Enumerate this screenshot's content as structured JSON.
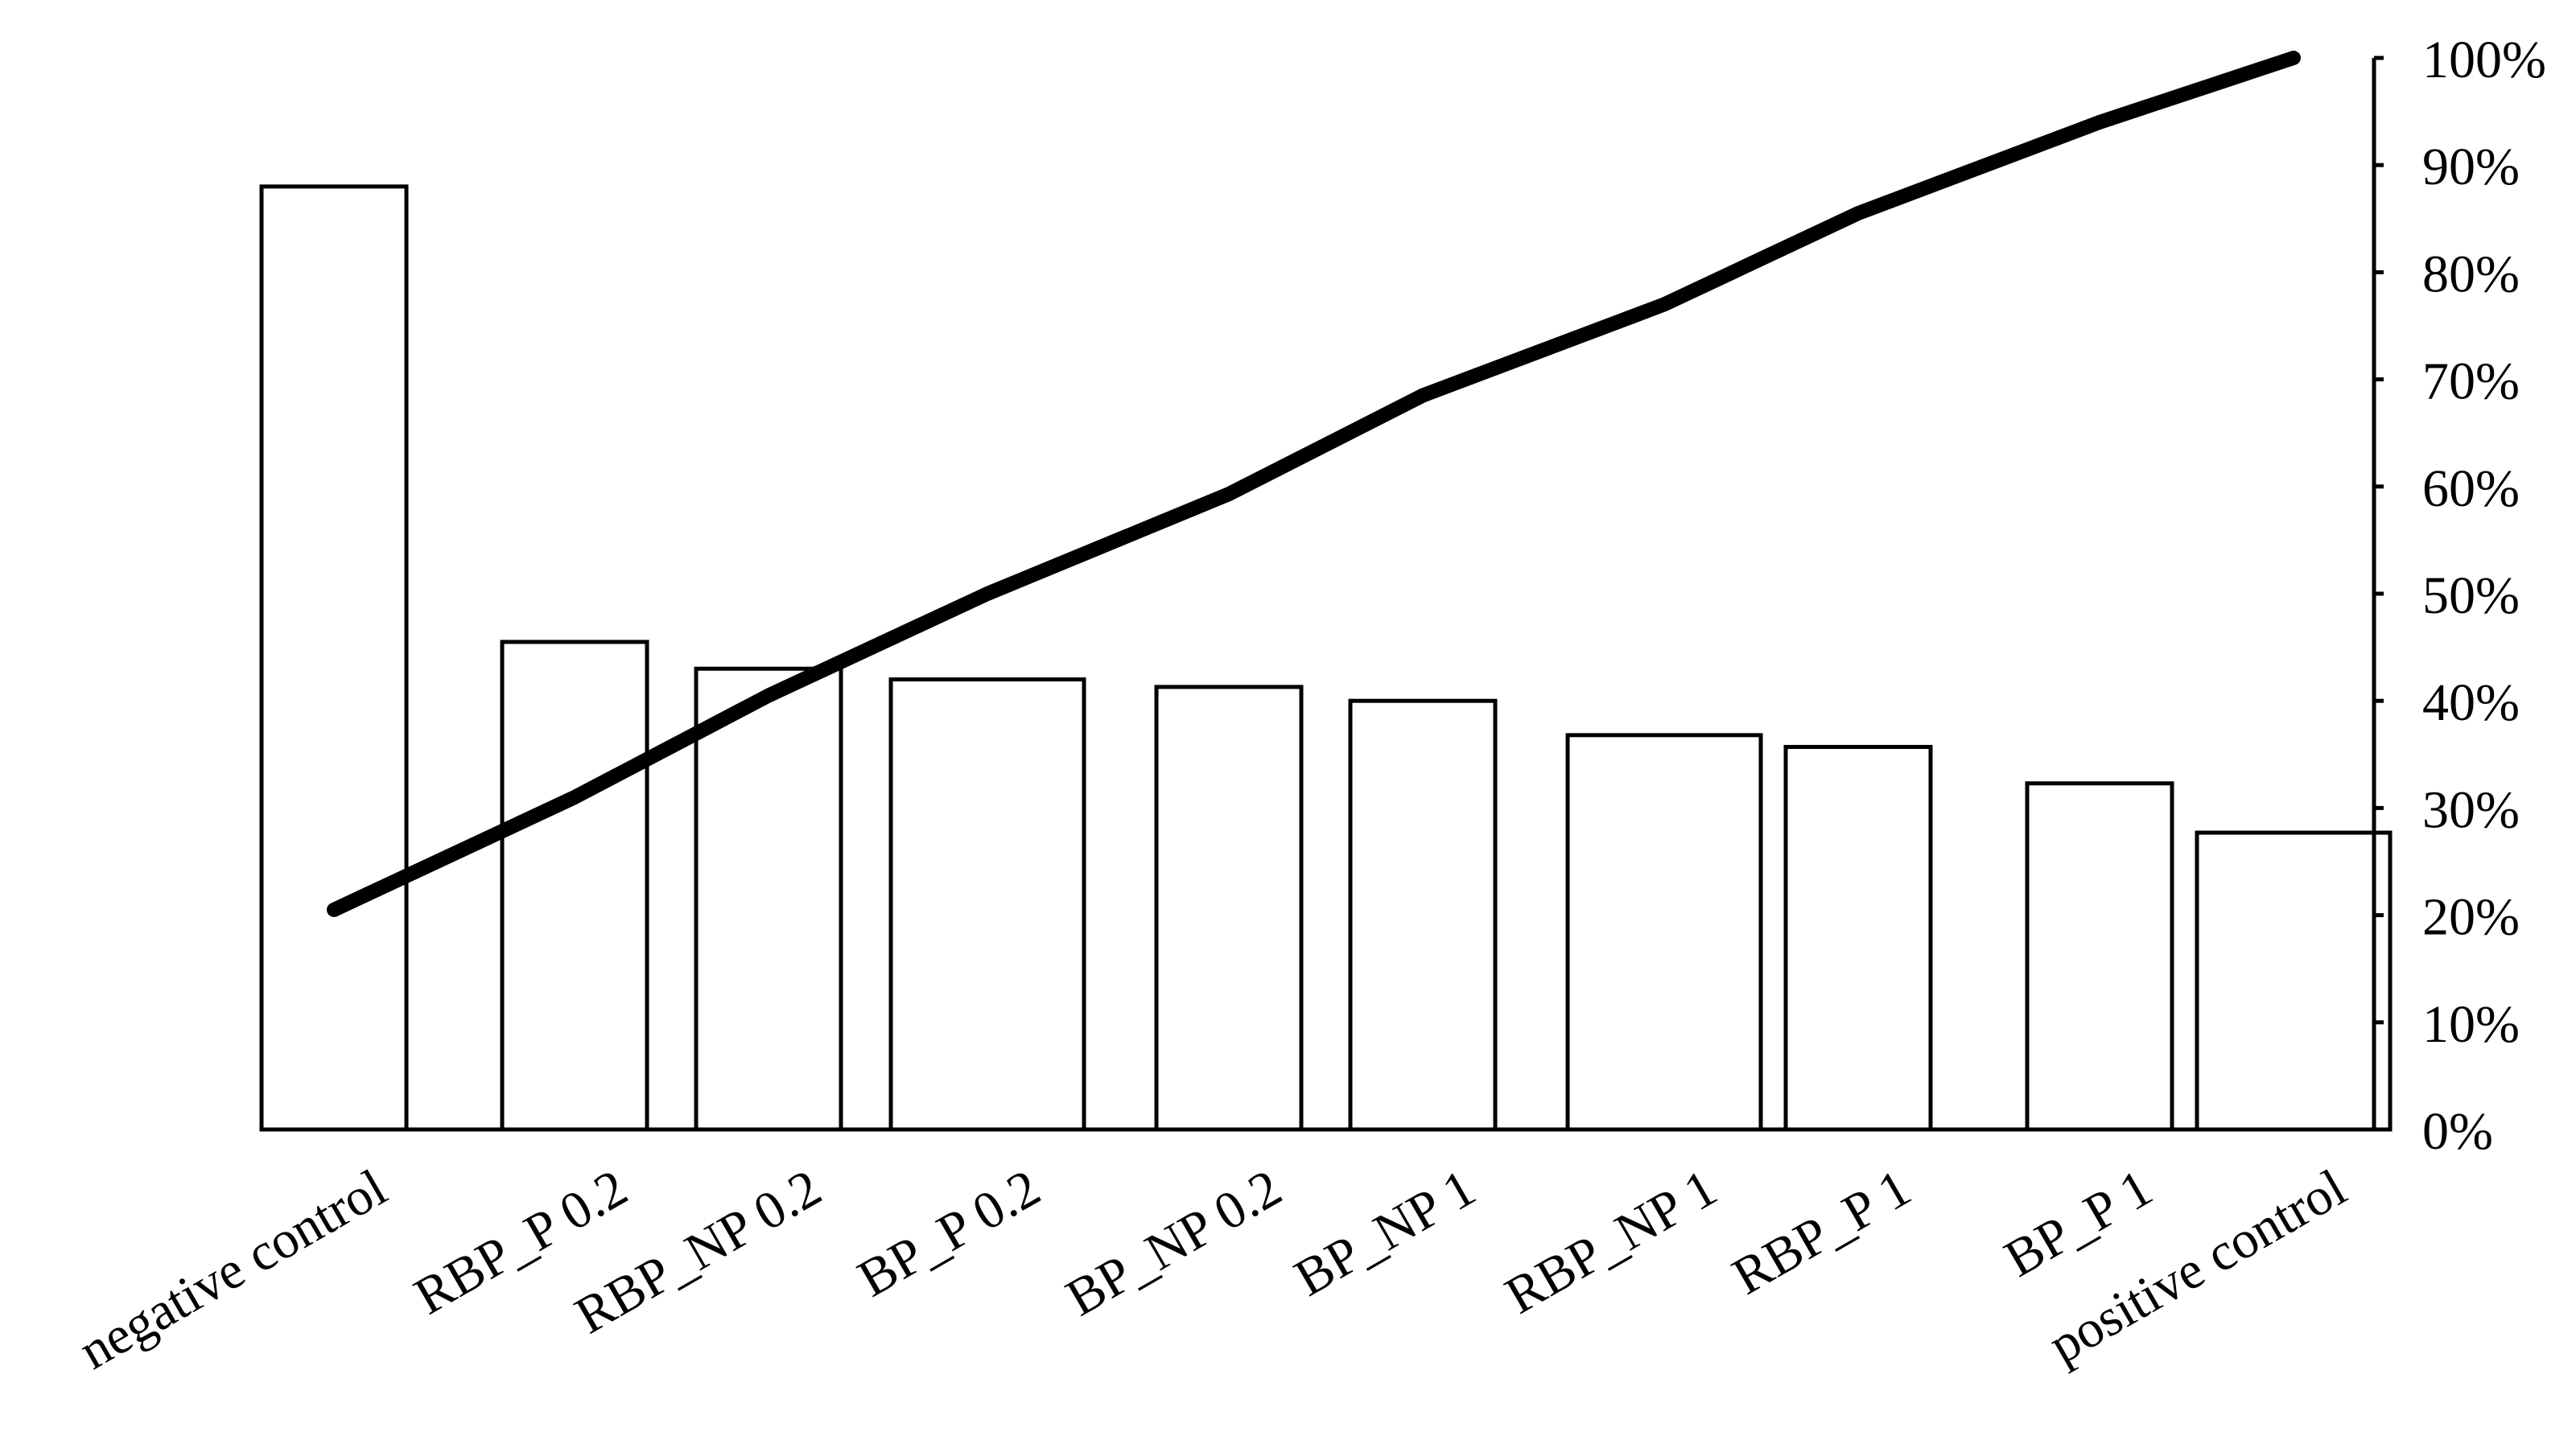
{
  "chart_data": {
    "type": "bar",
    "title": "",
    "xlabel": "",
    "ylabel": "",
    "categories": [
      "negative control",
      "RBP_P 0.2",
      "RBP_NP 0.2",
      "BP_P 0.2",
      "BP_NP 0.2",
      "BP_NP 1",
      "RBP_NP 1",
      "RBP_P 1",
      "BP_P 1",
      "positive control"
    ],
    "series": [
      {
        "type": "bar",
        "values": [
          0.88,
          0.455,
          0.43,
          0.42,
          0.413,
          0.4,
          0.368,
          0.357,
          0.323,
          0.277
        ]
      },
      {
        "type": "line",
        "axis": "right",
        "values": [
          0.205,
          0.31,
          0.405,
          0.5,
          0.593,
          0.685,
          0.77,
          0.855,
          0.94,
          1.0
        ]
      }
    ],
    "y_right": {
      "range": [
        0,
        1.0
      ],
      "ticks": [
        "0%",
        "10%",
        "20%",
        "30%",
        "40%",
        "50%",
        "60%",
        "70%",
        "80%",
        "90%",
        "100%"
      ]
    },
    "grid": false,
    "legend": "none"
  }
}
